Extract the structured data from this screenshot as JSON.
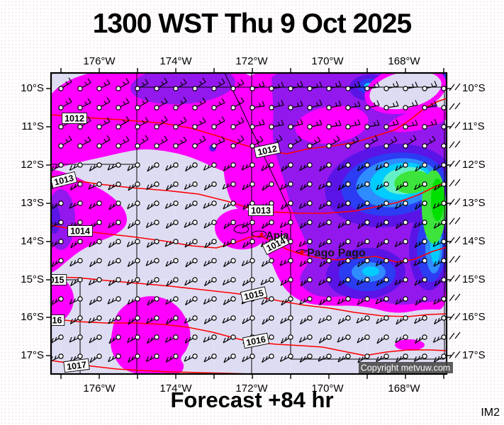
{
  "title": "1300 WST Thu 9 Oct 2025",
  "footer": {
    "forecast_label": "Forecast +84 hr",
    "model_tag": "IM2"
  },
  "map": {
    "copyright": "Copyright metvuw.com",
    "longitude_labels": [
      "176°W",
      "174°W",
      "172°W",
      "170°W",
      "168°W"
    ],
    "latitude_labels": [
      "10°S",
      "11°S",
      "12°S",
      "13°S",
      "14°S",
      "15°S",
      "16°S",
      "17°S"
    ],
    "cities": [
      {
        "name": "Apia"
      },
      {
        "name": "Pago Pago"
      }
    ],
    "isobar_unit": "hPa",
    "isobar_values": [
      1012,
      1013,
      1014,
      1015,
      1016,
      1017
    ],
    "isobar_label_texts": [
      "1012",
      "1012",
      "1013",
      "1013",
      "1014",
      "1014",
      "015",
      "1015",
      "016",
      "1016",
      "1017"
    ],
    "colors": {
      "no_rain": "#dedcf2",
      "rain_levels": [
        "#ff00ff",
        "#9318ee",
        "#5a14e6",
        "#2b3cf2",
        "#2e8cff",
        "#00ccff",
        "#63f0c8",
        "#3ce43c"
      ],
      "isobar": "#ff0000",
      "city_dot": "#e80000",
      "badge_bg": "rgba(66,66,66,0.85)",
      "badge_text": "#ffffff"
    }
  }
}
